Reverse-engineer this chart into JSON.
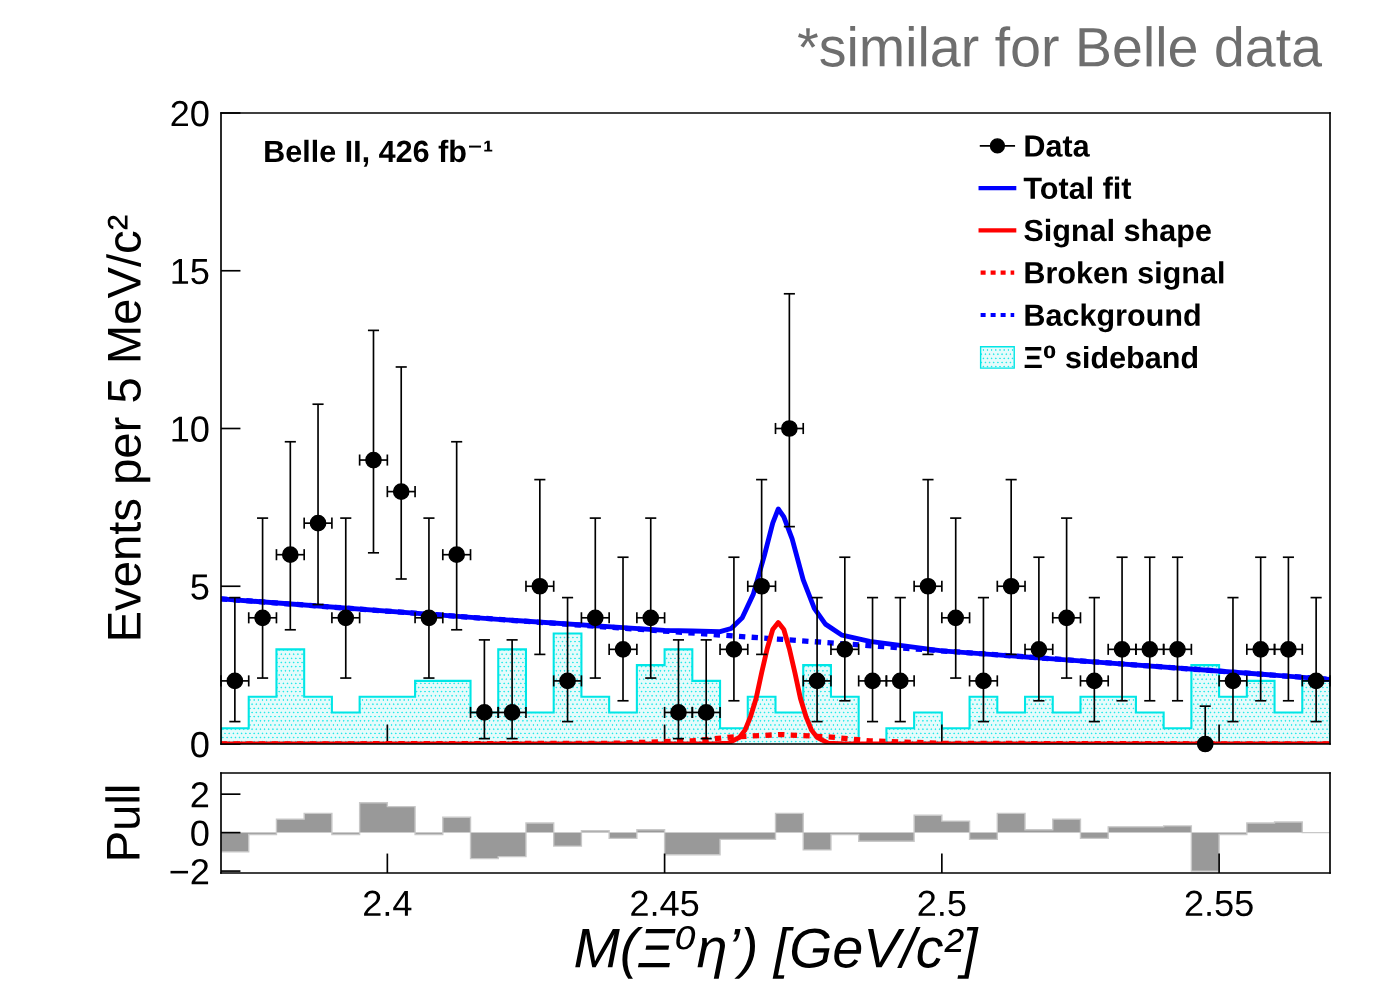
{
  "chart_data": [
    {
      "type": "line",
      "title": "*similar for Belle data",
      "ylabel": "Events per 5 MeV/c²",
      "annotations": [
        "Belle II, 426 fb⁻¹"
      ],
      "xlim": [
        2.37,
        2.57
      ],
      "xticks": [
        2.4,
        2.45,
        2.5,
        2.55
      ],
      "ylim": [
        0,
        20
      ],
      "yticks": [
        0,
        5,
        10,
        15,
        20
      ],
      "tick_labels": "y",
      "legend": "top right",
      "grid": false,
      "series": [
        {
          "name": "Ξ⁰ sideband",
          "type": "histogram",
          "color": "#00e6e6",
          "bins": [
            2.37,
            2.375,
            2.38,
            2.385,
            2.39,
            2.395,
            2.4,
            2.405,
            2.41,
            2.415,
            2.42,
            2.425,
            2.43,
            2.435,
            2.44,
            2.445,
            2.45,
            2.455,
            2.46,
            2.465,
            2.47,
            2.475,
            2.48,
            2.485,
            2.49,
            2.495,
            2.5,
            2.505,
            2.51,
            2.515,
            2.52,
            2.525,
            2.53,
            2.535,
            2.54,
            2.545,
            2.55,
            2.555,
            2.56,
            2.565,
            2.57
          ],
          "values": [
            0.5,
            1.5,
            3,
            1.5,
            1,
            1.5,
            1.5,
            2,
            2,
            1,
            3,
            1,
            3.5,
            1.5,
            1,
            2.5,
            3,
            2,
            0.5,
            1.5,
            1,
            2.5,
            1.5,
            0,
            0.5,
            1,
            0.5,
            1.5,
            1,
            1.5,
            1,
            1.5,
            1.5,
            1,
            0.5,
            2.5,
            1.5,
            2,
            1,
            2
          ]
        },
        {
          "name": "Background",
          "type": "line",
          "line_style": "dotted",
          "color": "#0000ff",
          "x": [
            2.37,
            2.42,
            2.47,
            2.52,
            2.57
          ],
          "values": [
            4.6,
            3.95,
            3.33,
            2.7,
            2.05
          ]
        },
        {
          "name": "Broken signal",
          "type": "line",
          "line_style": "dotted",
          "color": "#ff0000",
          "x": [
            2.37,
            2.44,
            2.455,
            2.462,
            2.471,
            2.48,
            2.487,
            2.5,
            2.57
          ],
          "values": [
            0,
            0.02,
            0.1,
            0.22,
            0.3,
            0.22,
            0.1,
            0.02,
            0
          ]
        },
        {
          "name": "Signal shape",
          "type": "line",
          "line_style": "solid",
          "color": "#ff0000",
          "x": [
            2.37,
            2.4585,
            2.4615,
            2.4635,
            2.4645,
            2.4655,
            2.4665,
            2.4675,
            2.4685,
            2.4695,
            2.4705,
            2.4715,
            2.4725,
            2.4735,
            2.4745,
            2.4755,
            2.4765,
            2.4775,
            2.4795,
            2.4825,
            2.57
          ],
          "values": [
            0,
            0,
            0.03,
            0.21,
            0.44,
            0.87,
            1.44,
            2.26,
            3.02,
            3.63,
            3.85,
            3.63,
            3.02,
            2.26,
            1.44,
            0.87,
            0.44,
            0.21,
            0.03,
            0,
            0
          ]
        },
        {
          "name": "Total fit",
          "type": "line",
          "line_style": "solid",
          "color": "#0000ff",
          "x": [
            2.37,
            2.42,
            2.45,
            2.455,
            2.46,
            2.462,
            2.464,
            2.466,
            2.468,
            2.4695,
            2.4705,
            2.4715,
            2.473,
            2.475,
            2.477,
            2.479,
            2.482,
            2.487,
            2.5,
            2.52,
            2.57
          ],
          "values": [
            4.6,
            3.95,
            3.6,
            3.58,
            3.56,
            3.66,
            4.0,
            4.75,
            5.98,
            7.0,
            7.45,
            7.2,
            6.5,
            5.2,
            4.3,
            3.8,
            3.45,
            3.25,
            2.95,
            2.7,
            2.05
          ]
        },
        {
          "name": "Data",
          "type": "scatter",
          "marker": "circle",
          "color": "#000000",
          "x": [
            2.3725,
            2.3775,
            2.3825,
            2.3875,
            2.3925,
            2.3975,
            2.4025,
            2.4075,
            2.4125,
            2.4175,
            2.4225,
            2.4275,
            2.4325,
            2.4375,
            2.4425,
            2.4475,
            2.4525,
            2.4575,
            2.4625,
            2.4675,
            2.4725,
            2.4775,
            2.4825,
            2.4875,
            2.4925,
            2.4975,
            2.5025,
            2.5075,
            2.5125,
            2.5175,
            2.5225,
            2.5275,
            2.5325,
            2.5375,
            2.5425,
            2.5475,
            2.5525,
            2.5575,
            2.5625,
            2.5675
          ],
          "values": [
            2,
            4,
            6,
            7,
            4,
            9,
            8,
            4,
            6,
            1,
            1,
            5,
            2,
            4,
            3,
            4,
            1,
            1,
            3,
            5,
            10,
            2,
            3,
            2,
            2,
            5,
            4,
            2,
            5,
            3,
            4,
            2,
            3,
            3,
            3,
            0,
            2,
            3,
            3,
            2
          ],
          "errors": [
            [
              0.71,
              4.64
            ],
            [
              2.09,
              7.16
            ],
            [
              3.62,
              9.58
            ],
            [
              4.42,
              10.77
            ],
            [
              2.09,
              7.16
            ],
            [
              6.06,
              13.11
            ],
            [
              5.23,
              11.95
            ],
            [
              2.09,
              7.16
            ],
            [
              3.62,
              9.58
            ],
            [
              0.17,
              3.3
            ],
            [
              0.17,
              3.3
            ],
            [
              2.84,
              8.38
            ],
            [
              0.71,
              4.64
            ],
            [
              2.09,
              7.16
            ],
            [
              1.37,
              5.92
            ],
            [
              2.09,
              7.16
            ],
            [
              0.17,
              3.3
            ],
            [
              0.17,
              3.3
            ],
            [
              1.37,
              5.92
            ],
            [
              2.84,
              8.38
            ],
            [
              6.89,
              14.27
            ],
            [
              0.71,
              4.64
            ],
            [
              1.37,
              5.92
            ],
            [
              0.71,
              4.64
            ],
            [
              0.71,
              4.64
            ],
            [
              2.84,
              8.38
            ],
            [
              2.09,
              7.16
            ],
            [
              0.71,
              4.64
            ],
            [
              2.84,
              8.38
            ],
            [
              1.37,
              5.92
            ],
            [
              2.09,
              7.16
            ],
            [
              0.71,
              4.64
            ],
            [
              1.37,
              5.92
            ],
            [
              1.37,
              5.92
            ],
            [
              1.37,
              5.92
            ],
            [
              0,
              1.2
            ],
            [
              0.71,
              4.64
            ],
            [
              1.37,
              5.92
            ],
            [
              1.37,
              5.92
            ],
            [
              0.71,
              4.64
            ]
          ],
          "xerrors": [
            0.0025,
            0.0025,
            0.0025,
            0.0025,
            0.0025,
            0.0025,
            0.0025,
            0.0025,
            0.0025,
            0.0025,
            0.0025,
            0.0025,
            0.0025,
            0.0025,
            0.0025,
            0.0025,
            0.0025,
            0.0025,
            0.0025,
            0.0025,
            0.0025,
            0.0025,
            0.0025,
            0.0025,
            0.0025,
            0.0025,
            0.0025,
            0.0025,
            0.0025,
            0.0025,
            0.0025,
            0.0025,
            0.0025,
            0.0025,
            0.0025,
            null,
            0.0025,
            0.0025,
            0.0025,
            0.0025
          ]
        }
      ]
    },
    {
      "type": "histogram",
      "ylabel": "Pull",
      "xlabel": "M(Ξ⁰η’) [GeV/c²]",
      "color": "#999999",
      "xlim": [
        2.37,
        2.57
      ],
      "xticks": [
        2.4,
        2.45,
        2.5,
        2.55
      ],
      "ylim": [
        -2.1,
        3.1
      ],
      "yticks": [
        {
          "value": -2,
          "label": "−2"
        },
        0,
        2
      ],
      "grid": false,
      "bins": [
        2.37,
        2.375,
        2.38,
        2.385,
        2.39,
        2.395,
        2.4,
        2.405,
        2.41,
        2.415,
        2.42,
        2.425,
        2.43,
        2.435,
        2.44,
        2.445,
        2.45,
        2.455,
        2.46,
        2.465,
        2.47,
        2.475,
        2.48,
        2.485,
        2.49,
        2.495,
        2.5,
        2.505,
        2.51,
        2.515,
        2.52,
        2.525,
        2.53,
        2.535,
        2.54,
        2.545,
        2.55,
        2.555,
        2.56,
        2.565,
        2.57
      ],
      "values": [
        -1.0,
        -0.1,
        0.7,
        1.0,
        -0.1,
        1.55,
        1.35,
        -0.1,
        0.8,
        -1.35,
        -1.25,
        0.5,
        -0.7,
        0.1,
        -0.3,
        0.15,
        -1.15,
        -1.15,
        -0.35,
        -0.35,
        1.0,
        -0.9,
        -0.1,
        -0.45,
        -0.45,
        0.9,
        0.6,
        -0.35,
        1.0,
        0.15,
        0.7,
        -0.3,
        0.3,
        0.3,
        0.35,
        -2.0,
        -0.1,
        0.5,
        0.55,
        0.0
      ]
    }
  ]
}
